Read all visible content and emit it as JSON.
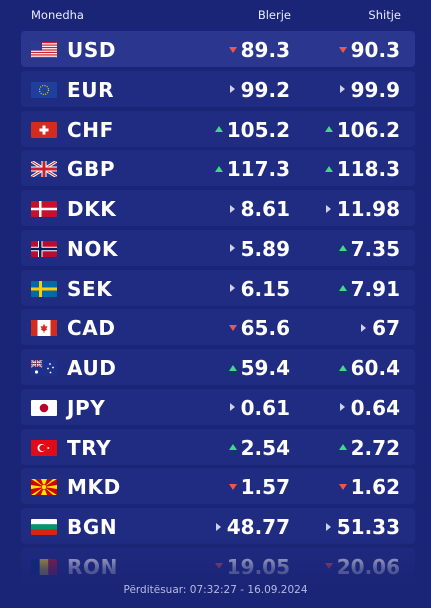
{
  "header": {
    "currency_label": "Monedha",
    "buy_label": "Blerje",
    "sell_label": "Shitje"
  },
  "colors": {
    "background": "#1b2577",
    "row": "#202b82",
    "up": "#3ddc84",
    "down": "#f0564a",
    "neutral": "#cfd3ea"
  },
  "rows": [
    {
      "code": "USD",
      "flag": "us-flag-icon",
      "buy": "89.3",
      "buy_trend": "down",
      "sell": "90.3",
      "sell_trend": "down"
    },
    {
      "code": "EUR",
      "flag": "eu-flag-icon",
      "buy": "99.2",
      "buy_trend": "same",
      "sell": "99.9",
      "sell_trend": "same"
    },
    {
      "code": "CHF",
      "flag": "ch-flag-icon",
      "buy": "105.2",
      "buy_trend": "up",
      "sell": "106.2",
      "sell_trend": "up"
    },
    {
      "code": "GBP",
      "flag": "gb-flag-icon",
      "buy": "117.3",
      "buy_trend": "up",
      "sell": "118.3",
      "sell_trend": "up"
    },
    {
      "code": "DKK",
      "flag": "dk-flag-icon",
      "buy": "8.61",
      "buy_trend": "same",
      "sell": "11.98",
      "sell_trend": "same"
    },
    {
      "code": "NOK",
      "flag": "no-flag-icon",
      "buy": "5.89",
      "buy_trend": "same",
      "sell": "7.35",
      "sell_trend": "up"
    },
    {
      "code": "SEK",
      "flag": "se-flag-icon",
      "buy": "6.15",
      "buy_trend": "same",
      "sell": "7.91",
      "sell_trend": "up"
    },
    {
      "code": "CAD",
      "flag": "ca-flag-icon",
      "buy": "65.6",
      "buy_trend": "down",
      "sell": "67",
      "sell_trend": "same"
    },
    {
      "code": "AUD",
      "flag": "au-flag-icon",
      "buy": "59.4",
      "buy_trend": "up",
      "sell": "60.4",
      "sell_trend": "up"
    },
    {
      "code": "JPY",
      "flag": "jp-flag-icon",
      "buy": "0.61",
      "buy_trend": "same",
      "sell": "0.64",
      "sell_trend": "same"
    },
    {
      "code": "TRY",
      "flag": "tr-flag-icon",
      "buy": "2.54",
      "buy_trend": "up",
      "sell": "2.72",
      "sell_trend": "up"
    },
    {
      "code": "MKD",
      "flag": "mk-flag-icon",
      "buy": "1.57",
      "buy_trend": "down",
      "sell": "1.62",
      "sell_trend": "down"
    },
    {
      "code": "BGN",
      "flag": "bg-flag-icon",
      "buy": "48.77",
      "buy_trend": "same",
      "sell": "51.33",
      "sell_trend": "same"
    },
    {
      "code": "RON",
      "flag": "ro-flag-icon",
      "buy": "19.05",
      "buy_trend": "down",
      "sell": "20.06",
      "sell_trend": "down"
    }
  ],
  "footer": {
    "updated": "Përditësuar: 07:32:27 - 16.09.2024"
  }
}
